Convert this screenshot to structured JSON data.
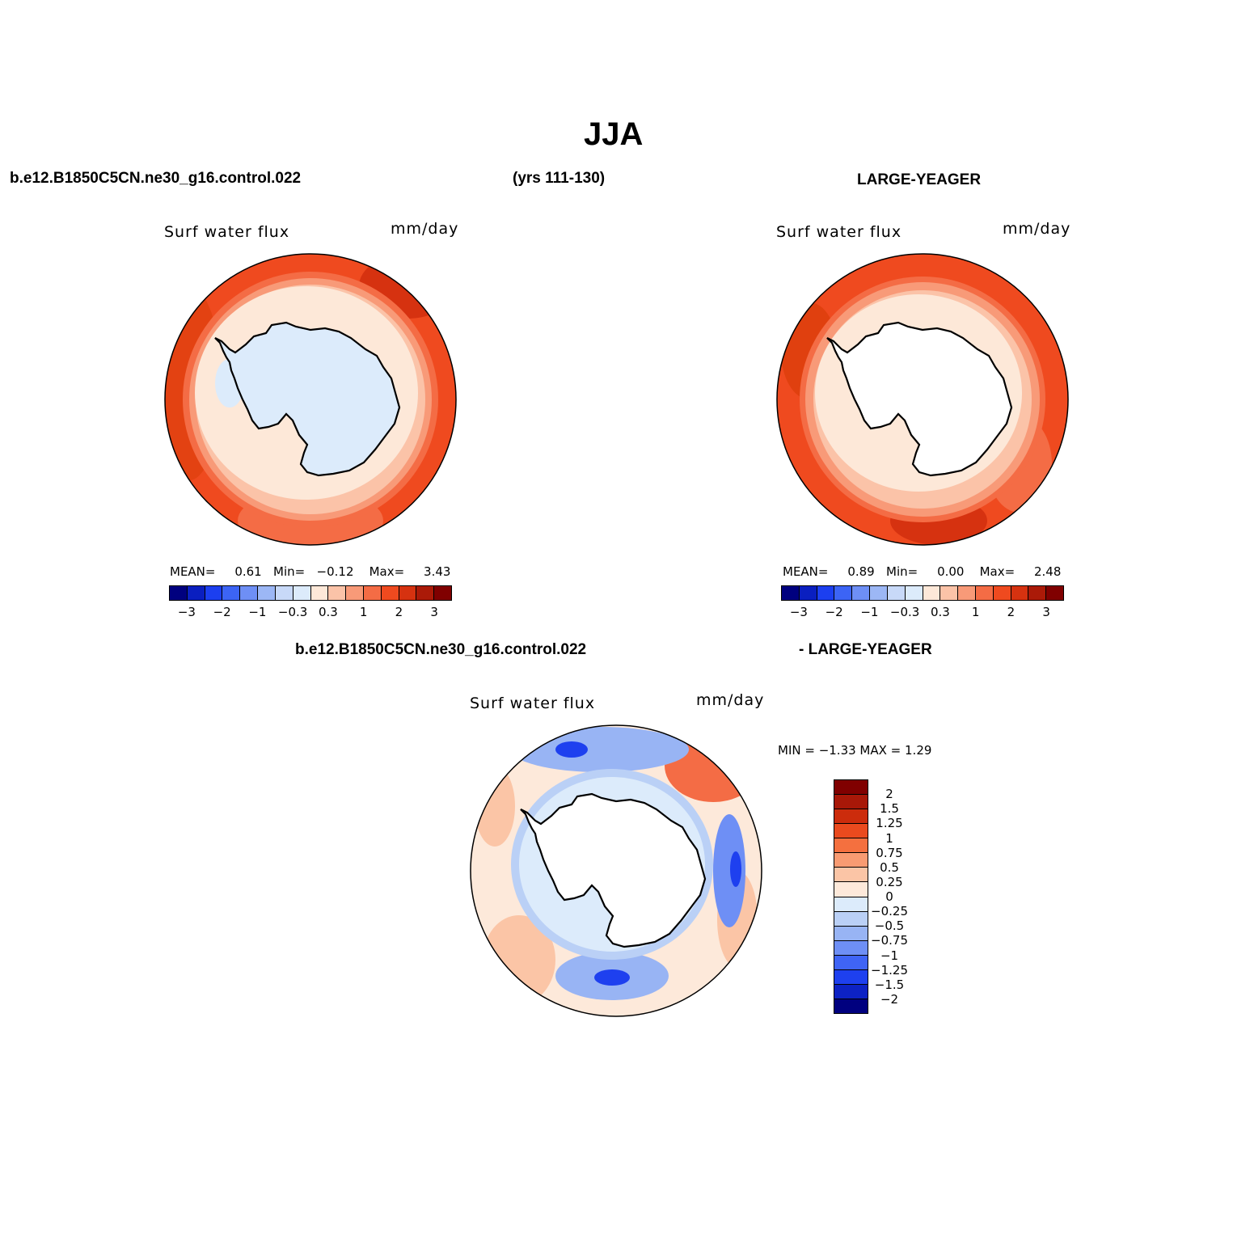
{
  "figure": {
    "title": "JJA",
    "case_name": "b.e12.B1850C5CN.ne30_g16.control.022",
    "years": "(yrs 111-130)",
    "obs_name": "LARGE-YEAGER",
    "diff_case": "b.e12.B1850C5CN.ne30_g16.control.022",
    "diff_obs": "- LARGE-YEAGER"
  },
  "panels": {
    "left": {
      "variable": "Surf water flux",
      "units": "mm/day",
      "mean_label": "MEAN=",
      "mean": "0.61",
      "min_label": "Min=",
      "min": "−0.12",
      "max_label": "Max=",
      "max": "3.43"
    },
    "right": {
      "variable": "Surf water flux",
      "units": "mm/day",
      "mean_label": "MEAN=",
      "mean": "0.89",
      "min_label": "Min=",
      "min": "0.00",
      "max_label": "Max=",
      "max": "2.48"
    },
    "diff": {
      "variable": "Surf water flux",
      "units": "mm/day",
      "minmax": "MIN =   −1.33  MAX =     1.29"
    }
  },
  "colorbar_main": {
    "colors": [
      "#00007f",
      "#0a1fc0",
      "#1c3ff0",
      "#3c64f5",
      "#6e8ff5",
      "#9cb7f5",
      "#c8d9f8",
      "#dcebfb",
      "#fde8d8",
      "#fbc3a8",
      "#f89a78",
      "#f46c45",
      "#ef4a1f",
      "#d63210",
      "#ab1a08",
      "#800000"
    ],
    "ticks": [
      "−3",
      "−2",
      "−1",
      "−0.3",
      "0.3",
      "1",
      "2",
      "3"
    ]
  },
  "colorbar_diff": {
    "colors": [
      "#800000",
      "#a81808",
      "#cc2c0c",
      "#ea4a1e",
      "#f4703f",
      "#f89b72",
      "#fbc5a6",
      "#fde9da",
      "#dcebfb",
      "#bad0f6",
      "#98b4f4",
      "#6e8ff5",
      "#3f64f5",
      "#1e40ef",
      "#0d22c4",
      "#00007f"
    ],
    "ticks": [
      "2",
      "1.5",
      "1.25",
      "1",
      "0.75",
      "0.5",
      "0.25",
      "0",
      "−0.25",
      "−0.5",
      "−0.75",
      "−1",
      "−1.25",
      "−1.5",
      "−2"
    ]
  },
  "icons": {
    "maps": [
      "antarctic-polar-map-icon"
    ]
  }
}
